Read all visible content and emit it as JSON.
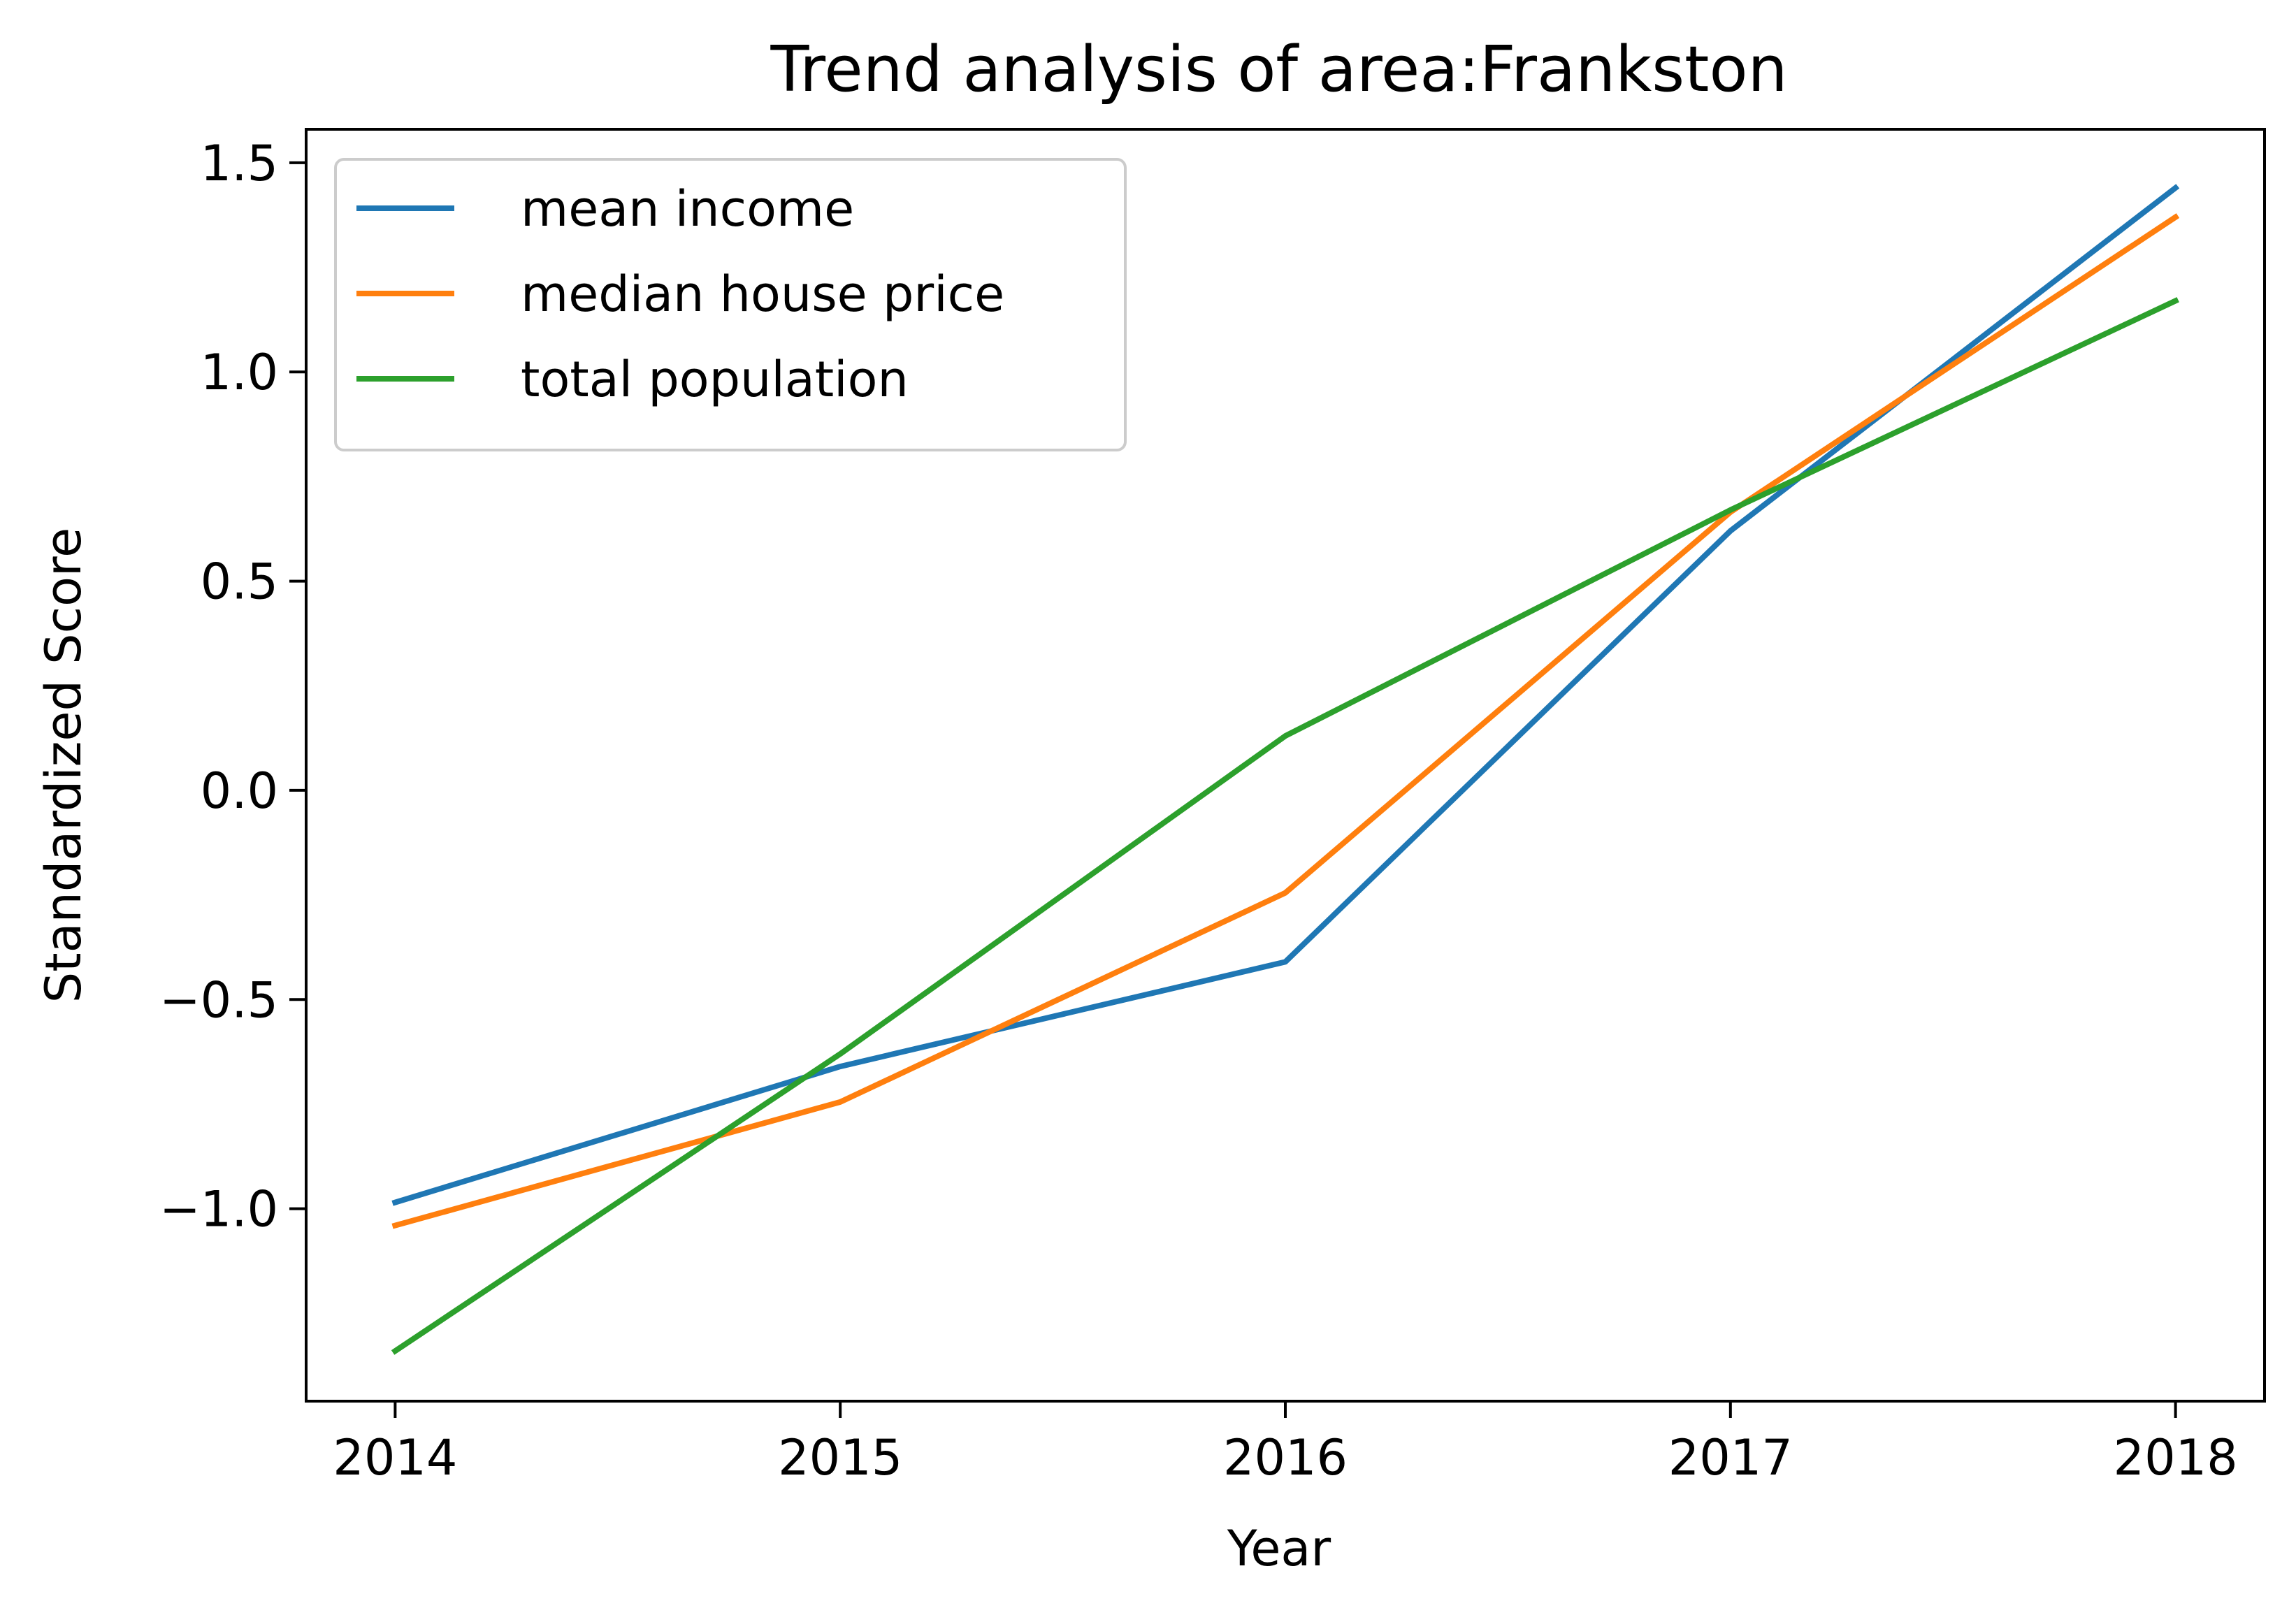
{
  "chart_data": {
    "type": "line",
    "title": "Trend analysis of area:Frankston",
    "xlabel": "Year",
    "ylabel": "Standardized Score",
    "x": [
      2014,
      2015,
      2016,
      2017,
      2018
    ],
    "xlim": [
      2013.8,
      2018.2
    ],
    "ylim": [
      -1.46,
      1.58
    ],
    "xticks": [
      2014,
      2015,
      2016,
      2017,
      2018
    ],
    "xtick_labels": [
      "2014",
      "2015",
      "2016",
      "2017",
      "2018"
    ],
    "yticks": [
      -1.0,
      -0.5,
      0.0,
      0.5,
      1.0,
      1.5
    ],
    "ytick_labels": [
      "−1.0",
      "−0.5",
      "0.0",
      "0.5",
      "1.0",
      "1.5"
    ],
    "grid": false,
    "legend_position": "upper-left",
    "series": [
      {
        "name": "mean income",
        "color": "#1f77b4",
        "values": [
          -0.985,
          -0.66,
          -0.41,
          0.62,
          1.44
        ]
      },
      {
        "name": "median house price",
        "color": "#ff7f0e",
        "values": [
          -1.04,
          -0.745,
          -0.245,
          0.665,
          1.37
        ]
      },
      {
        "name": "total population",
        "color": "#2ca02c",
        "values": [
          -1.34,
          -0.63,
          0.13,
          0.67,
          1.17
        ]
      }
    ]
  }
}
